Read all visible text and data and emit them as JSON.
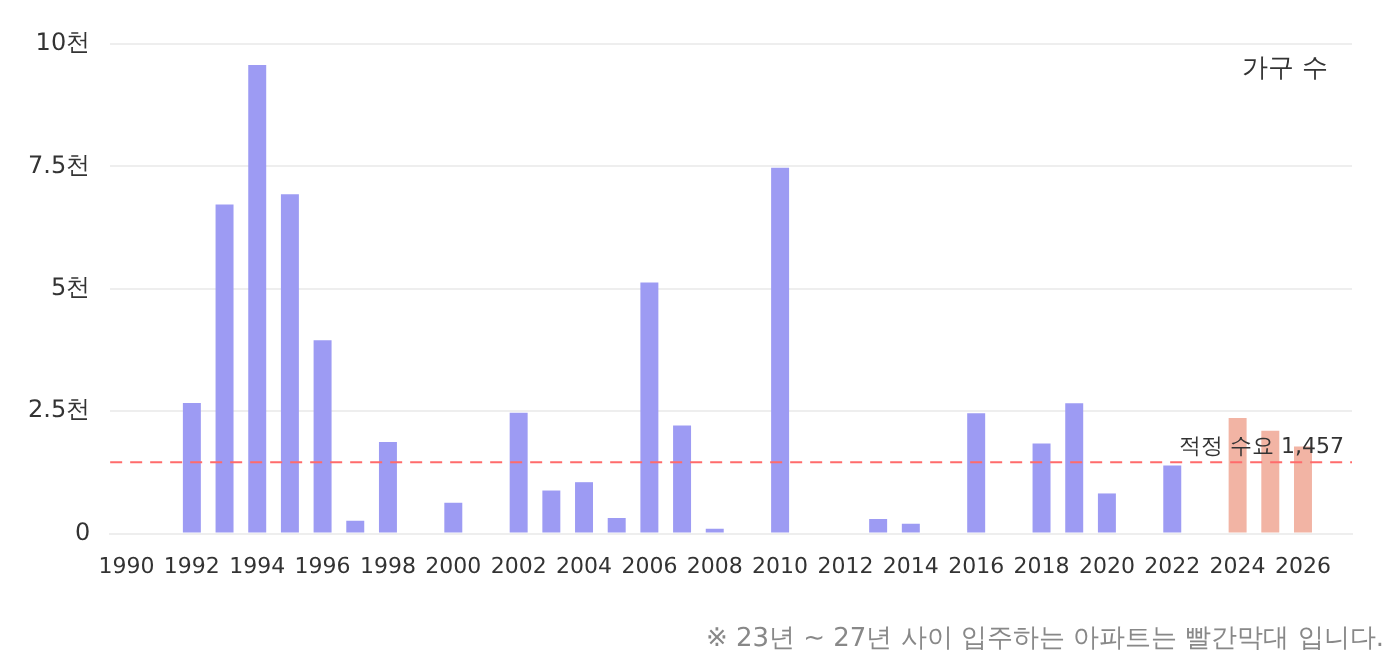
{
  "chart_data": {
    "type": "bar",
    "ylabel": "가구 수",
    "categories": [
      "1990",
      null,
      "1992",
      null,
      "1994",
      null,
      "1996",
      null,
      "1998",
      null,
      "2000",
      null,
      "2002",
      null,
      "2004",
      null,
      "2006",
      null,
      "2008",
      null,
      "2010",
      null,
      "2012",
      null,
      "2014",
      null,
      "2016",
      null,
      "2018",
      null,
      "2020",
      null,
      "2022",
      null,
      "2024",
      null,
      "2026",
      null
    ],
    "series": [
      {
        "values": [
          null,
          null,
          2.67,
          6.72,
          9.57,
          6.93,
          3.95,
          0.26,
          1.87,
          null,
          0.63,
          null,
          2.47,
          0.88,
          1.05,
          0.32,
          5.13,
          2.21,
          0.1,
          null,
          7.47,
          null,
          null,
          0.3,
          0.2,
          null,
          2.46,
          null,
          1.84,
          2.66,
          0.82,
          null,
          1.39,
          null,
          2.36,
          2.1,
          1.78,
          null
        ],
        "colors": [
          "#9d9bf3",
          "#9d9bf3",
          "#9d9bf3",
          "#9d9bf3",
          "#9d9bf3",
          "#9d9bf3",
          "#9d9bf3",
          "#9d9bf3",
          "#9d9bf3",
          "#9d9bf3",
          "#9d9bf3",
          "#9d9bf3",
          "#9d9bf3",
          "#9d9bf3",
          "#9d9bf3",
          "#9d9bf3",
          "#9d9bf3",
          "#9d9bf3",
          "#9d9bf3",
          "#9d9bf3",
          "#9d9bf3",
          "#9d9bf3",
          "#9d9bf3",
          "#9d9bf3",
          "#9d9bf3",
          "#9d9bf3",
          "#9d9bf3",
          "#9d9bf3",
          "#9d9bf3",
          "#9d9bf3",
          "#9d9bf3",
          "#9d9bf3",
          "#9d9bf3",
          "#9d9bf3",
          "#f2b4a4",
          "#f2b4a4",
          "#f2b4a4",
          "#f2b4a4"
        ]
      }
    ],
    "ylim": [
      0,
      10
    ],
    "yticks": [
      0,
      {
        "value": 2.5,
        "label": "2.5천"
      },
      {
        "value": 5,
        "label": "5천"
      },
      {
        "value": 7.5,
        "label": "7.5천"
      },
      {
        "value": 10,
        "label": "10천"
      }
    ],
    "ref_lines": [
      {
        "axis": "y",
        "value": 1.457,
        "label": "적정 수요 1,457",
        "color": "#ff6b6b",
        "line_style": "dashed"
      }
    ],
    "annotations": [
      "※ 23년 ~ 27년 사이 입주하는 아파트는 빨간막대 입니다."
    ],
    "grid": "y",
    "legend": false
  }
}
